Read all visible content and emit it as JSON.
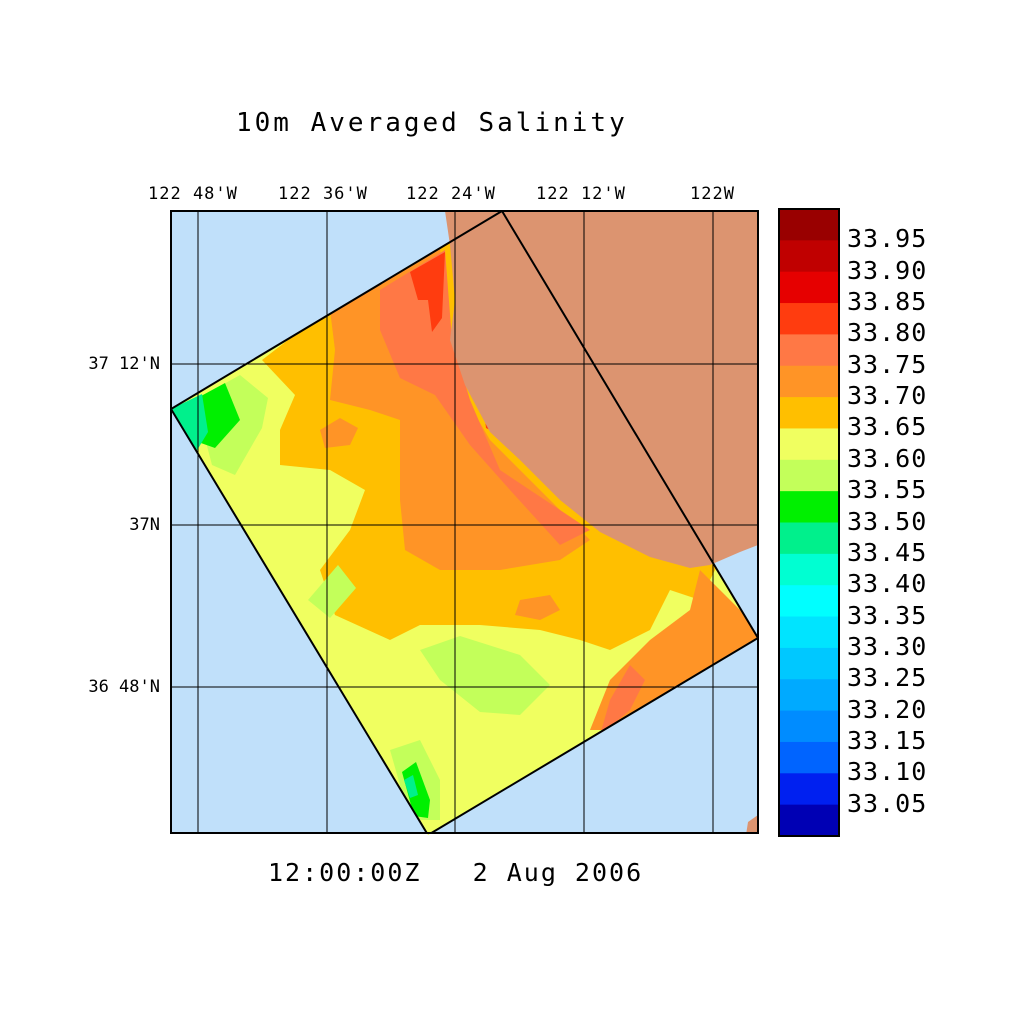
{
  "chart_data": {
    "type": "heatmap",
    "title": "10m Averaged Salinity",
    "timestamp": "12:00:00Z   2 Aug 2006",
    "lon_ticks": [
      "122 48'W",
      "122 36'W",
      "122 24'W",
      "122 12'W",
      "122W"
    ],
    "lat_ticks": [
      "37 12'N",
      "37N",
      "36 48'N"
    ],
    "colorbar": {
      "labels": [
        "33.95",
        "33.90",
        "33.85",
        "33.80",
        "33.75",
        "33.70",
        "33.65",
        "33.60",
        "33.55",
        "33.50",
        "33.45",
        "33.40",
        "33.35",
        "33.30",
        "33.25",
        "33.20",
        "33.15",
        "33.10",
        "33.05"
      ],
      "colors": [
        "#990000",
        "#c00000",
        "#e60000",
        "#ff3c0f",
        "#ff7845",
        "#ff9426",
        "#ffbf00",
        "#f0ff60",
        "#c3ff5a",
        "#00f000",
        "#00f08c",
        "#00ffd2",
        "#00ffff",
        "#00e4ff",
        "#00c8ff",
        "#00aaff",
        "#008cff",
        "#0064ff",
        "#0020f0",
        "#0000b4"
      ],
      "range": [
        33.0,
        34.0
      ]
    },
    "value_range_shown": [
      33.45,
      33.85
    ],
    "colors": {
      "ocean": "#c0e0fa",
      "land": "#dc9470"
    }
  }
}
